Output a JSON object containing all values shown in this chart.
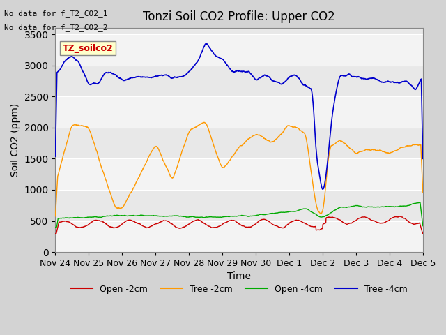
{
  "title": "Tonzi Soil CO2 Profile: Upper CO2",
  "ylabel": "Soil CO2 (ppm)",
  "xlabel": "Time",
  "no_data_text": [
    "No data for f_T2_CO2_1",
    "No data for f_T2_CO2_2"
  ],
  "source_label": "TZ_soilco2",
  "ylim": [
    0,
    3600
  ],
  "yticks": [
    0,
    500,
    1000,
    1500,
    2000,
    2500,
    3000,
    3500
  ],
  "date_labels": [
    "Nov 24",
    "Nov 25",
    "Nov 26",
    "Nov 27",
    "Nov 28",
    "Nov 29",
    "Nov 30",
    "Dec 1",
    "Dec 2",
    "Dec 3",
    "Dec 4",
    "Dec 5"
  ],
  "colors": {
    "open_2cm": "#cc0000",
    "tree_2cm": "#ff9900",
    "open_4cm": "#00aa00",
    "tree_4cm": "#0000cc"
  },
  "legend_labels": [
    "Open -2cm",
    "Tree -2cm",
    "Open -4cm",
    "Tree -4cm"
  ],
  "bg_color": "#e8e8e8",
  "plot_bg": "#e8e8e8",
  "grid_color": "#ffffff"
}
